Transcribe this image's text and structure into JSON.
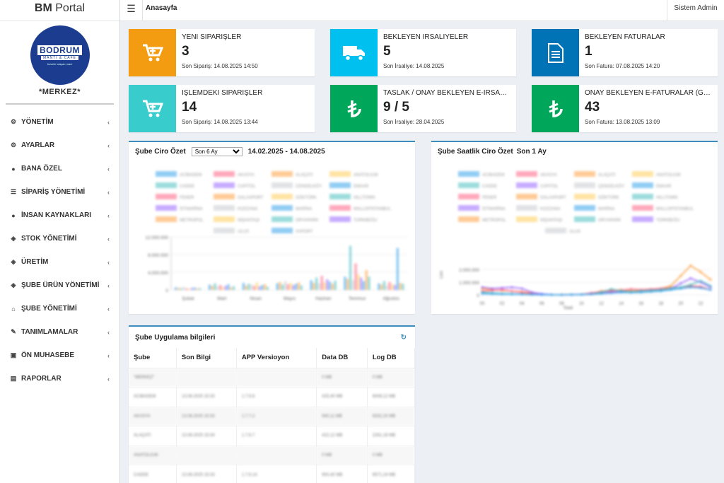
{
  "app": {
    "brand_bold": "BM",
    "brand_rest": " Portal"
  },
  "sidebar": {
    "logo": {
      "line1": "BODRUM",
      "line2": "MANTI & CAFE",
      "line3": "lezzete ulaşan mavi"
    },
    "branch": "*MERKEZ*",
    "items": [
      {
        "label": "YÖNETİM",
        "icon": "cogs-icon"
      },
      {
        "label": "AYARLAR",
        "icon": "cogs-icon"
      },
      {
        "label": "BANA ÖZEL",
        "icon": "user-icon"
      },
      {
        "label": "SİPARİŞ YÖNETİMİ",
        "icon": "list-icon"
      },
      {
        "label": "İNSAN KAYNAKLARI",
        "icon": "user-icon"
      },
      {
        "label": "STOK YÖNETİMİ",
        "icon": "cube-icon"
      },
      {
        "label": "ÜRETİM",
        "icon": "cube-icon"
      },
      {
        "label": "ŞUBE ÜRÜN YÖNETİMİ",
        "icon": "cube-icon"
      },
      {
        "label": "ŞUBE YÖNETİMİ",
        "icon": "home-icon"
      },
      {
        "label": "TANIMLAMALAR",
        "icon": "edit-icon"
      },
      {
        "label": "ÖN MUHASEBE",
        "icon": "money-icon"
      },
      {
        "label": "RAPORLAR",
        "icon": "file-icon"
      }
    ]
  },
  "topbar": {
    "breadcrumb": "Anasayfa",
    "user": "Sistem Admin"
  },
  "info_boxes": [
    {
      "title": "YENI SIPARIŞLER",
      "value": "3",
      "sub": "Son Sipariş: 14.08.2025 14:50",
      "color": "#f39c12",
      "icon": "cart-plus-icon"
    },
    {
      "title": "BEKLEYEN İRSALIYELER",
      "value": "5",
      "sub": "Son İrsaliye: 14.08.2025",
      "color": "#00c0ef",
      "icon": "truck-icon"
    },
    {
      "title": "BEKLEYEN FATURALAR",
      "value": "1",
      "sub": "Son Fatura: 07.08.2025 14:20",
      "color": "#0073b7",
      "icon": "file-text-icon"
    },
    {
      "title": "İŞLEMDEKI SIPARIŞLER",
      "value": "14",
      "sub": "Son Sipariş: 14.08.2025 13:44",
      "color": "#39cccc",
      "icon": "cart-plus-icon"
    },
    {
      "title": "TASLAK / ONAY BEKLEYEN E-İRSALIYELER",
      "value": "9 / 5",
      "sub": "Son İrsaliye: 28.04.2025",
      "color": "#00a65a",
      "icon": "lira-icon"
    },
    {
      "title": "ONAY BEKLEYEN E-FATURALAR (GİB)",
      "value": "43",
      "sub": "Son Fatura: 13.08.2025 13:09",
      "color": "#00a65a",
      "icon": "lira-icon"
    }
  ],
  "ciro_panel": {
    "title": "Şube Ciro Özet",
    "select_value": "Son 6 Ay",
    "date_range": "14.02.2025 - 14.08.2025"
  },
  "saatlik_panel": {
    "title": "Şube Saatlik Ciro Özet",
    "period": "Son 1 Ay"
  },
  "table_panel": {
    "title": "Şube Uygulama bilgileri",
    "columns": [
      "Şube",
      "Son Bilgi",
      "APP Versioyon",
      "Data DB",
      "Log DB"
    ],
    "rows": [
      [
        "\"MERKEZ\"",
        "",
        "",
        "0 MB",
        "0 MB"
      ],
      [
        "ACIBADEM",
        "13.08.2025 15:33",
        "1.7.6.6",
        "425,40 MB",
        "6008,12 MB"
      ],
      [
        "AKASYA",
        "13.08.2025 15:33",
        "1.7.7.2",
        "940,11 MB",
        "6332,20 MB"
      ],
      [
        "ALAÇATI",
        "13.08.2025 15:34",
        "1.7.6.7",
        "422,12 MB",
        "2261,16 MB"
      ],
      [
        "ANATOLIUM",
        "",
        "",
        "0 MB",
        "0 MB"
      ],
      [
        "CADDE",
        "13.08.2025 15:33",
        "1.7.6.14",
        "900,40 MB",
        "6571,24 MB"
      ]
    ]
  },
  "chart_data": [
    {
      "type": "bar",
      "title": "Şube Ciro Özet",
      "categories": [
        "Şubat",
        "Mart",
        "Nisan",
        "Mayıs",
        "Haziran",
        "Temmuz",
        "Ağustos"
      ],
      "legend": [
        "ACIBADEM",
        "AKASYA",
        "ALAÇATI",
        "ANATOLIUM",
        "CADDE",
        "CAPITOL",
        "CENGELKÖY",
        "EMAAR",
        "FENER",
        "GALAXPORT",
        "GÖKTÜRK",
        "HILLTOWN",
        "İSTMARİNA",
        "KOZZANA",
        "MARİNA",
        "MALLOFİSTANBUL",
        "METROPOL",
        "NİŞANTAŞI",
        "ORYAPARK",
        "TORKBEĞU",
        "ULUS",
        "XXPORT"
      ],
      "legend_colors": [
        "#36a2eb",
        "#ff6384",
        "#ff9f40",
        "#ffcd56",
        "#4bc0c0",
        "#9966ff",
        "#c9cbcf",
        "#36a2eb",
        "#ff6384",
        "#ff9f40",
        "#ffcd56",
        "#4bc0c0",
        "#9966ff",
        "#c9cbcf",
        "#36a2eb",
        "#ff6384",
        "#ff9f40",
        "#ffcd56",
        "#4bc0c0",
        "#9966ff",
        "#c9cbcf",
        "#36a2eb"
      ],
      "yticks": [
        "12.000.000",
        "8.000.000",
        "4.000.000",
        "0"
      ],
      "ylim": [
        0,
        12000000
      ],
      "series_values": [
        [
          600000,
          500000,
          400000,
          700000,
          350000,
          300000,
          450000,
          550000,
          380000,
          420000
        ],
        [
          1200000,
          900000,
          1500000,
          800000,
          1100000,
          700000,
          950000,
          1300000,
          600000,
          850000
        ],
        [
          1600000,
          1000000,
          1400000,
          1200000,
          900000,
          1700000,
          800000,
          1100000,
          1300000,
          700000
        ],
        [
          1500000,
          1800000,
          1200000,
          2000000,
          1300000,
          1600000,
          1100000,
          1400000,
          1700000,
          1000000
        ],
        [
          2200000,
          1600000,
          2800000,
          1500000,
          3200000,
          1700000,
          2400000,
          1900000,
          1400000,
          2100000
        ],
        [
          3000000,
          2500000,
          10000000,
          2200000,
          6000000,
          3500000,
          2800000,
          2000000,
          4500000,
          3000000
        ],
        [
          1500000,
          1200000,
          2000000,
          1000000,
          1800000,
          1300000,
          1100000,
          9500000,
          1600000,
          1400000
        ]
      ]
    },
    {
      "type": "line",
      "title": "Şube Saatlik Ciro Özet",
      "xlabel": "Saat",
      "ylabel": "Ciro",
      "legend": [
        "ACIBADEM",
        "AKASYA",
        "ALAÇATI",
        "ANATOLIUM",
        "CADDE",
        "CAPITOL",
        "ÇENGELKÖY",
        "EMAAR",
        "FENER",
        "GALAXPORT",
        "GÖKTÜRK",
        "HILLTOWN",
        "İSTMARİNA",
        "KOZZANA",
        "MARİNA",
        "MALLOFİSTANBUL",
        "METROPOL",
        "NİŞANTAŞI",
        "ORYAPARK",
        "TORKBEĞU",
        "ULUS"
      ],
      "legend_colors": [
        "#36a2eb",
        "#ff6384",
        "#ff9f40",
        "#ffcd56",
        "#4bc0c0",
        "#9966ff",
        "#c9cbcf",
        "#36a2eb",
        "#ff6384",
        "#ff9f40",
        "#ffcd56",
        "#4bc0c0",
        "#9966ff",
        "#c9cbcf",
        "#36a2eb",
        "#ff6384",
        "#ff9f40",
        "#ffcd56",
        "#4bc0c0",
        "#9966ff",
        "#c9cbcf"
      ],
      "yticks": [
        "2.000.000",
        "1.000.000",
        "0"
      ],
      "ylim": [
        0,
        2500000
      ],
      "x": [
        "00",
        "01",
        "02",
        "03",
        "04",
        "05",
        "06",
        "07",
        "08",
        "09",
        "10",
        "11",
        "12",
        "13",
        "14",
        "15",
        "16",
        "17",
        "18",
        "19",
        "20",
        "21",
        "22",
        "23"
      ],
      "series": [
        {
          "color": "#ff9f40",
          "values": [
            500000,
            400000,
            350000,
            300000,
            250000,
            150000,
            50000,
            20000,
            20000,
            30000,
            40000,
            100000,
            300000,
            350000,
            400000,
            300000,
            350000,
            400000,
            500000,
            700000,
            1500000,
            2300000,
            1800000,
            1200000
          ]
        },
        {
          "color": "#ff6384",
          "values": [
            300000,
            350000,
            400000,
            300000,
            200000,
            100000,
            40000,
            10000,
            10000,
            20000,
            40000,
            150000,
            250000,
            300000,
            350000,
            450000,
            400000,
            450000,
            500000,
            550000,
            600000,
            700000,
            650000,
            400000
          ]
        },
        {
          "color": "#9966ff",
          "values": [
            600000,
            500000,
            550000,
            600000,
            500000,
            200000,
            80000,
            20000,
            10000,
            20000,
            30000,
            80000,
            150000,
            200000,
            250000,
            200000,
            300000,
            350000,
            400000,
            500000,
            900000,
            1300000,
            1000000,
            600000
          ]
        },
        {
          "color": "#4bc0c0",
          "values": [
            200000,
            150000,
            100000,
            80000,
            60000,
            40000,
            20000,
            10000,
            10000,
            20000,
            30000,
            60000,
            200000,
            450000,
            300000,
            250000,
            300000,
            350000,
            400000,
            500000,
            600000,
            800000,
            1100000,
            700000
          ]
        },
        {
          "color": "#36a2eb",
          "values": [
            100000,
            80000,
            60000,
            50000,
            40000,
            20000,
            10000,
            5000,
            5000,
            10000,
            20000,
            50000,
            100000,
            150000,
            200000,
            180000,
            200000,
            250000,
            300000,
            400000,
            500000,
            600000,
            550000,
            400000
          ]
        }
      ]
    }
  ]
}
